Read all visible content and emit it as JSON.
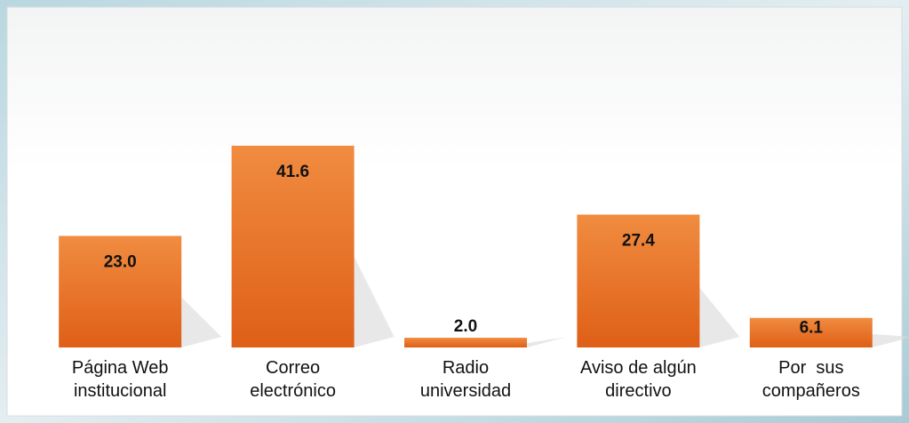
{
  "chart_data": {
    "type": "bar",
    "categories": [
      "Página Web\ninstitucional",
      "Correo\nelectrónico",
      "Radio\nuniversidad",
      "Aviso de algún\ndirectivo",
      "Por  sus\ncompañeros"
    ],
    "values": [
      23.0,
      41.6,
      2.0,
      27.4,
      6.1
    ],
    "value_labels": [
      "23.0",
      "41.6",
      "2.0",
      "27.4",
      "6.1"
    ],
    "color": "#e8742b"
  }
}
